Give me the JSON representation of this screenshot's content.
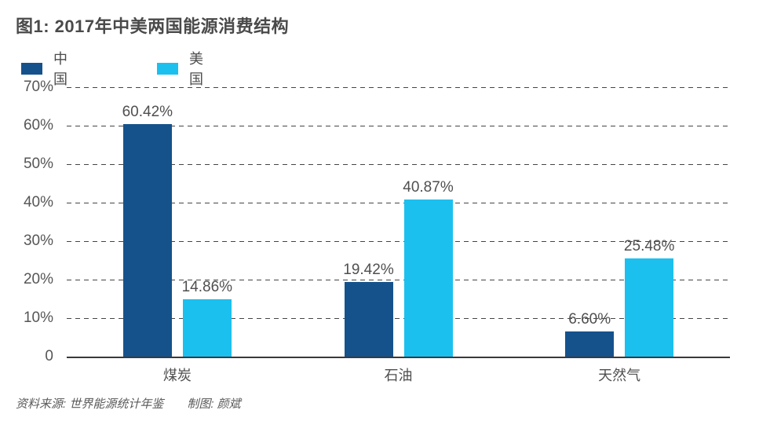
{
  "title": "图1: 2017年中美两国能源消费结构",
  "legend": {
    "items": [
      {
        "label": "中国",
        "color": "#15528c"
      },
      {
        "label": "美国",
        "color": "#1bc0ef"
      }
    ]
  },
  "chart_data": {
    "type": "bar",
    "title": "图1: 2017年中美两国能源消费结构",
    "categories": [
      "煤炭",
      "石油",
      "天然气"
    ],
    "series": [
      {
        "name": "中国",
        "color": "#15528c",
        "values": [
          60.42,
          19.42,
          6.6
        ]
      },
      {
        "name": "美国",
        "color": "#1bc0ef",
        "values": [
          14.86,
          40.87,
          25.48
        ]
      }
    ],
    "value_labels": [
      [
        "60.42%",
        "19.42%",
        "6.60%"
      ],
      [
        "14.86%",
        "40.87%",
        "25.48%"
      ]
    ],
    "ytick_labels": [
      "0",
      "10%",
      "20%",
      "30%",
      "40%",
      "50%",
      "60%",
      "70%"
    ],
    "ylim": [
      0,
      70
    ],
    "ytick_interval": 10,
    "grid": "horizontal-dashed",
    "legend_position": "top-left",
    "xlabel": "",
    "ylabel": ""
  },
  "footer": {
    "source": "资料来源: 世界能源统计年鉴",
    "credit": "制图: 颜斌"
  }
}
